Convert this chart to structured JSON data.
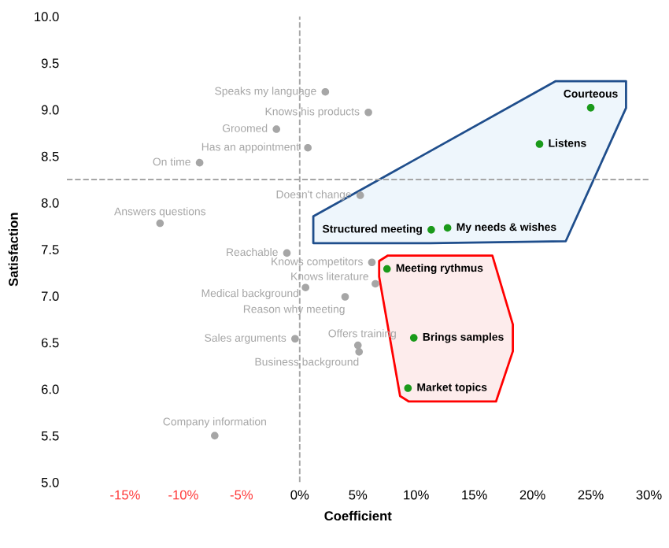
{
  "chart_data": {
    "type": "scatter",
    "xlabel": "Coefficient",
    "ylabel": "Satisfaction",
    "xlim": [
      -20,
      30
    ],
    "ylim": [
      5,
      10
    ],
    "xticks": [
      {
        "value": -15,
        "label": "-15%"
      },
      {
        "value": -10,
        "label": "-10%"
      },
      {
        "value": -5,
        "label": "-5%"
      },
      {
        "value": 0,
        "label": "0%"
      },
      {
        "value": 5,
        "label": "5%"
      },
      {
        "value": 10,
        "label": "10%"
      },
      {
        "value": 15,
        "label": "15%"
      },
      {
        "value": 20,
        "label": "20%"
      },
      {
        "value": 25,
        "label": "25%"
      },
      {
        "value": 30,
        "label": "30%"
      }
    ],
    "yticks": [
      {
        "value": 5,
        "label": "5.0"
      },
      {
        "value": 5.5,
        "label": "5.5"
      },
      {
        "value": 6,
        "label": "6.0"
      },
      {
        "value": 6.5,
        "label": "6.5"
      },
      {
        "value": 7,
        "label": "7.0"
      },
      {
        "value": 7.5,
        "label": "7.5"
      },
      {
        "value": 8,
        "label": "8.0"
      },
      {
        "value": 8.5,
        "label": "8.5"
      },
      {
        "value": 9,
        "label": "9.0"
      },
      {
        "value": 9.5,
        "label": "9.5"
      },
      {
        "value": 10,
        "label": "10.0"
      }
    ],
    "grid": false,
    "marker": "circle",
    "ref_lines": [
      {
        "axis": "x",
        "value": 0,
        "color": "#a6a6a6",
        "line_style": "dashed"
      },
      {
        "axis": "y",
        "value": 8.25,
        "color": "#a6a6a6",
        "line_style": "dashed"
      }
    ],
    "series": [
      {
        "color": "#a6a6a6",
        "x": [
          2.2,
          5.9,
          -2.0,
          0.7,
          -8.6,
          5.2,
          -12.0,
          -1.1,
          6.2,
          6.5,
          0.5,
          3.9,
          5.0,
          5.1,
          -0.4,
          -7.3
        ],
        "values": [
          9.19,
          8.97,
          8.79,
          8.59,
          8.43,
          8.08,
          7.78,
          7.46,
          7.36,
          7.13,
          7.09,
          6.99,
          6.47,
          6.4,
          6.54,
          5.5
        ],
        "value_labels": [
          "Speaks my language",
          "Knows his products",
          "Groomed",
          "Has an appointment",
          "On time",
          "Doesn't change",
          "Answers questions",
          "Reachable",
          "Knows competitors",
          "Knows literature",
          "Medical background",
          "Reason why meeting",
          "Offers training",
          "Business background",
          "Sales arguments",
          "Company information"
        ]
      },
      {
        "color": "#1a9a1a",
        "x": [
          25.0,
          20.6,
          11.3,
          12.7
        ],
        "values": [
          9.02,
          8.63,
          7.71,
          7.73
        ],
        "value_labels": [
          "Courteous",
          "Listens",
          "Structured meeting",
          "My needs & wishes"
        ]
      },
      {
        "color": "#1a9a1a",
        "x": [
          7.5,
          9.8,
          9.3
        ],
        "values": [
          7.29,
          6.55,
          6.01
        ],
        "value_labels": [
          "Meeting rythmus",
          "Brings samples",
          "Market topics"
        ]
      }
    ]
  }
}
